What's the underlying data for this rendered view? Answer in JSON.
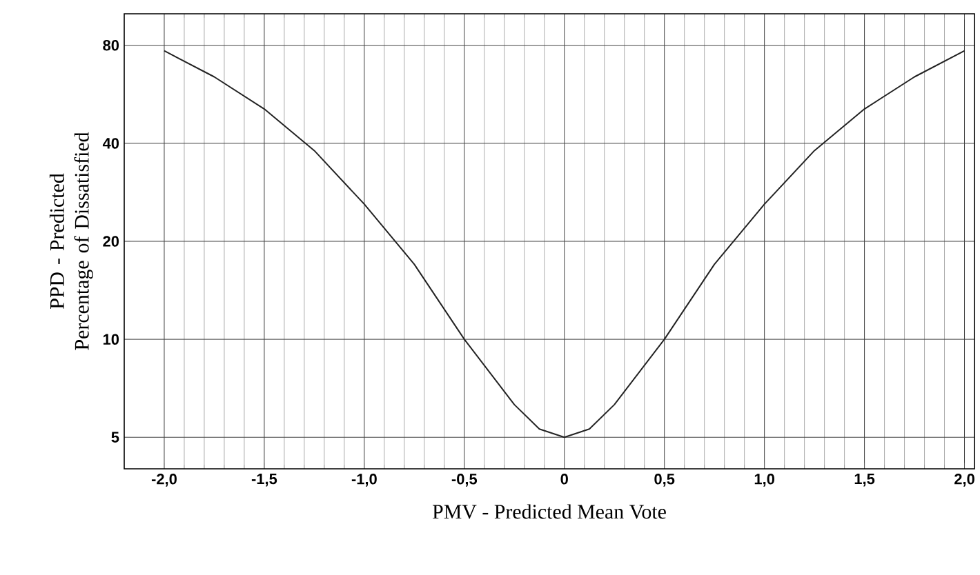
{
  "chart_data": {
    "type": "line",
    "xlabel": "PMV - Predicted Mean Vote",
    "ylabel": "PPD - Predicted Percentage of Dissatisfied",
    "x": [
      -2.0,
      -1.75,
      -1.5,
      -1.25,
      -1.0,
      -0.75,
      -0.5,
      -0.25,
      -0.125,
      0,
      0.125,
      0.25,
      0.5,
      0.75,
      1.0,
      1.25,
      1.5,
      1.75,
      2.0
    ],
    "series": [
      {
        "color": "#222222",
        "values": [
          77,
          64,
          51,
          38,
          26,
          17,
          10,
          6.3,
          5.3,
          5,
          5.3,
          6.3,
          10,
          17,
          26,
          38,
          51,
          64,
          77
        ]
      }
    ],
    "xlim": [
      -2.2,
      2.05
    ],
    "ylim": [
      4,
      100
    ],
    "xticks": [
      {
        "value": -2,
        "label": "-2,0"
      },
      {
        "value": -1.5,
        "label": "-1,5"
      },
      {
        "value": -1,
        "label": "-1,0"
      },
      {
        "value": -0.5,
        "label": "-0,5"
      },
      {
        "value": 0,
        "label": "0"
      },
      {
        "value": 0.5,
        "label": "0,5"
      },
      {
        "value": 1,
        "label": "1,0"
      },
      {
        "value": 1.5,
        "label": "1,5"
      },
      {
        "value": 2,
        "label": "2,0"
      }
    ],
    "yticks": [
      5,
      10,
      20,
      40,
      80
    ],
    "log": true,
    "grid": true,
    "marker": "none",
    "line_style": "solid"
  }
}
